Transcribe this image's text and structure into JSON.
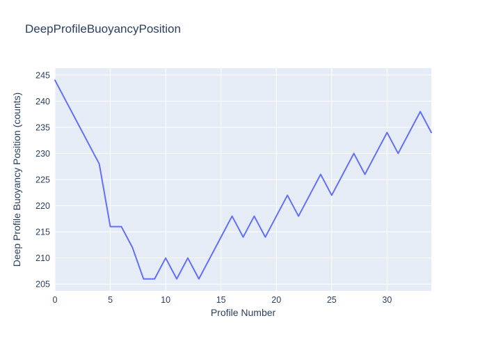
{
  "chart": {
    "title": "DeepProfileBuoyancyPosition",
    "xaxis_title": "Profile Number",
    "yaxis_title": "Deep Profile Buoyancy Position (counts)"
  },
  "chart_data": {
    "type": "line",
    "title": "DeepProfileBuoyancyPosition",
    "xlabel": "Profile Number",
    "ylabel": "Deep Profile Buoyancy Position (counts)",
    "x": [
      0,
      1,
      2,
      3,
      4,
      5,
      6,
      7,
      8,
      9,
      10,
      11,
      12,
      13,
      14,
      15,
      16,
      17,
      18,
      19,
      20,
      21,
      22,
      23,
      24,
      25,
      26,
      27,
      28,
      29,
      30,
      31,
      32,
      33,
      34
    ],
    "y": [
      244,
      240,
      236,
      232,
      228,
      216,
      216,
      212,
      206,
      206,
      210,
      206,
      210,
      206,
      210,
      214,
      218,
      214,
      218,
      214,
      218,
      222,
      218,
      222,
      226,
      222,
      226,
      230,
      226,
      230,
      234,
      230,
      234,
      238,
      234
    ],
    "xlim": [
      0,
      34
    ],
    "ylim": [
      203.7,
      246.3
    ],
    "xticks": [
      0,
      5,
      10,
      15,
      20,
      25,
      30
    ],
    "yticks": [
      205,
      210,
      215,
      220,
      225,
      230,
      235,
      240,
      245
    ],
    "grid": true,
    "legend": false,
    "line_color": "#636EFA",
    "plot_bg_color": "#E5ECF6",
    "grid_color": "#FFFFFF",
    "font_color": "#2a3f5f"
  }
}
